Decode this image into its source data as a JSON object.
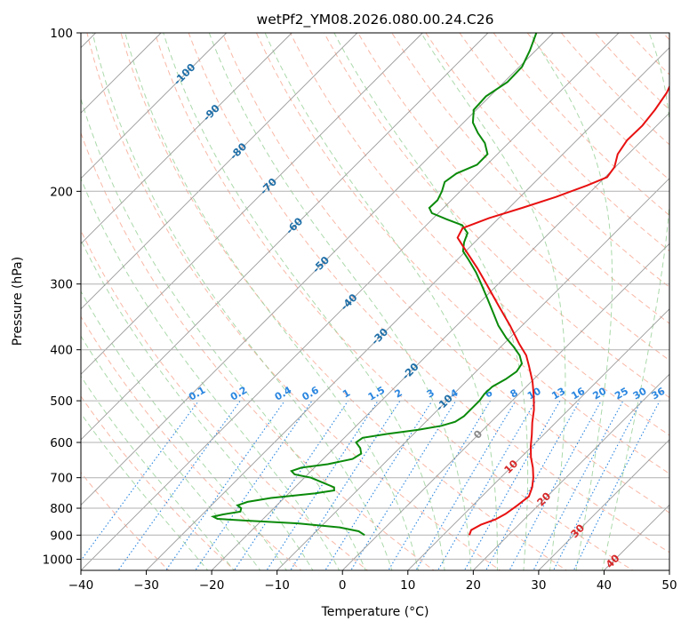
{
  "chart_data": {
    "type": "skew-t",
    "title": "wetPf2_YM08.2026.080.00.24.C26",
    "xlabel": "Temperature (°C)",
    "ylabel": "Pressure (hPa)",
    "xlim": [
      -40,
      50
    ],
    "ylim_hpa": [
      1050,
      100
    ],
    "x_ticks": [
      -40,
      -30,
      -20,
      -10,
      0,
      10,
      20,
      30,
      40,
      50
    ],
    "y_ticks": [
      1000,
      900,
      800,
      700,
      600,
      500,
      400,
      300,
      200,
      100
    ],
    "colors": {
      "temperature": "#e81010",
      "dewpoint": "#0a8a0a",
      "isotherm": "#9a9a9a",
      "dry_adiabat": "#f7a08a",
      "moist_adiabat": "#8fcc8f",
      "mixing_ratio": "#2a86e0",
      "isotherm_label": "#1f6fa8",
      "mixing_label": "#2a86e0",
      "mixing_zero_label": "#8a8a8a",
      "red_label": "#d62728"
    },
    "isotherm_labels": [
      {
        "temp": -100,
        "pressure": 120,
        "text": "-100"
      },
      {
        "temp": -90,
        "pressure": 142,
        "text": "-90"
      },
      {
        "temp": -80,
        "pressure": 168,
        "text": "-80"
      },
      {
        "temp": -70,
        "pressure": 196,
        "text": "-70"
      },
      {
        "temp": -60,
        "pressure": 233,
        "text": "-60"
      },
      {
        "temp": -50,
        "pressure": 276,
        "text": "-50"
      },
      {
        "temp": -40,
        "pressure": 325,
        "text": "-40"
      },
      {
        "temp": -30,
        "pressure": 378,
        "text": "-30"
      },
      {
        "temp": -20,
        "pressure": 440,
        "text": "-20"
      },
      {
        "temp": -10,
        "pressure": 505,
        "text": "-10"
      },
      {
        "temp": 0,
        "pressure": 580,
        "text": "0"
      },
      {
        "temp": 10,
        "pressure": 668,
        "text": "10"
      },
      {
        "temp": 20,
        "pressure": 770,
        "text": "20"
      },
      {
        "temp": 30,
        "pressure": 885,
        "text": "30"
      },
      {
        "temp": 40,
        "pressure": 1010,
        "text": "40"
      }
    ],
    "mixing_ratios": [
      0.1,
      0.2,
      0.4,
      0.6,
      1,
      1.5,
      2,
      3,
      4,
      6,
      8,
      10,
      13,
      16,
      20,
      25,
      30,
      36
    ],
    "mixing_ratio_labels": [
      "0.1",
      "0.2",
      "0.4",
      "0.6",
      "1",
      "1.5",
      "2",
      "3",
      "4",
      "6",
      "8",
      "10",
      "13",
      "16",
      "20",
      "25",
      "30",
      "36"
    ],
    "temperature_profile": [
      {
        "p": 900,
        "t": 14.0
      },
      {
        "p": 880,
        "t": 13.5
      },
      {
        "p": 860,
        "t": 14.2
      },
      {
        "p": 840,
        "t": 15.6
      },
      {
        "p": 820,
        "t": 16.3
      },
      {
        "p": 790,
        "t": 16.8
      },
      {
        "p": 760,
        "t": 17.2
      },
      {
        "p": 730,
        "t": 16.3
      },
      {
        "p": 700,
        "t": 15.0
      },
      {
        "p": 670,
        "t": 13.4
      },
      {
        "p": 640,
        "t": 11.5
      },
      {
        "p": 610,
        "t": 9.8
      },
      {
        "p": 580,
        "t": 8.2
      },
      {
        "p": 550,
        "t": 6.4
      },
      {
        "p": 520,
        "t": 4.7
      },
      {
        "p": 490,
        "t": 2.6
      },
      {
        "p": 460,
        "t": 0.2
      },
      {
        "p": 430,
        "t": -2.7
      },
      {
        "p": 410,
        "t": -4.8
      },
      {
        "p": 390,
        "t": -7.6
      },
      {
        "p": 360,
        "t": -11.8
      },
      {
        "p": 330,
        "t": -16.6
      },
      {
        "p": 300,
        "t": -21.8
      },
      {
        "p": 280,
        "t": -25.6
      },
      {
        "p": 260,
        "t": -29.9
      },
      {
        "p": 245,
        "t": -33.3
      },
      {
        "p": 235,
        "t": -34.0
      },
      {
        "p": 225,
        "t": -31.5
      },
      {
        "p": 215,
        "t": -28.0
      },
      {
        "p": 205,
        "t": -24.5
      },
      {
        "p": 195,
        "t": -21.5
      },
      {
        "p": 188,
        "t": -19.7
      },
      {
        "p": 180,
        "t": -20.1
      },
      {
        "p": 170,
        "t": -21.6
      },
      {
        "p": 160,
        "t": -22.3
      },
      {
        "p": 150,
        "t": -22.2
      },
      {
        "p": 140,
        "t": -22.7
      },
      {
        "p": 130,
        "t": -23.5
      },
      {
        "p": 120,
        "t": -25.0
      },
      {
        "p": 110,
        "t": -27.2
      },
      {
        "p": 100,
        "t": -29.4
      }
    ],
    "dewpoint_profile": [
      {
        "p": 900,
        "t": -2.0
      },
      {
        "p": 885,
        "t": -3.5
      },
      {
        "p": 870,
        "t": -7.0
      },
      {
        "p": 855,
        "t": -14.0
      },
      {
        "p": 845,
        "t": -22.0
      },
      {
        "p": 838,
        "t": -27.0
      },
      {
        "p": 830,
        "t": -28.0
      },
      {
        "p": 822,
        "t": -26.8
      },
      {
        "p": 812,
        "t": -24.6
      },
      {
        "p": 800,
        "t": -25.0
      },
      {
        "p": 790,
        "t": -26.0
      },
      {
        "p": 778,
        "t": -25.0
      },
      {
        "p": 765,
        "t": -22.0
      },
      {
        "p": 750,
        "t": -16.0
      },
      {
        "p": 740,
        "t": -13.5
      },
      {
        "p": 730,
        "t": -14.0
      },
      {
        "p": 715,
        "t": -16.5
      },
      {
        "p": 700,
        "t": -19.0
      },
      {
        "p": 690,
        "t": -22.0
      },
      {
        "p": 680,
        "t": -23.0
      },
      {
        "p": 670,
        "t": -22.0
      },
      {
        "p": 660,
        "t": -18.5
      },
      {
        "p": 645,
        "t": -15.5
      },
      {
        "p": 630,
        "t": -15.0
      },
      {
        "p": 615,
        "t": -16.0
      },
      {
        "p": 600,
        "t": -17.5
      },
      {
        "p": 588,
        "t": -17.2
      },
      {
        "p": 578,
        "t": -14.0
      },
      {
        "p": 568,
        "t": -10.0
      },
      {
        "p": 558,
        "t": -7.0
      },
      {
        "p": 548,
        "t": -5.5
      },
      {
        "p": 535,
        "t": -5.0
      },
      {
        "p": 515,
        "t": -5.0
      },
      {
        "p": 500,
        "t": -5.0
      },
      {
        "p": 485,
        "t": -5.3
      },
      {
        "p": 470,
        "t": -5.2
      },
      {
        "p": 455,
        "t": -4.3
      },
      {
        "p": 440,
        "t": -3.8
      },
      {
        "p": 425,
        "t": -4.2
      },
      {
        "p": 410,
        "t": -5.8
      },
      {
        "p": 395,
        "t": -8.0
      },
      {
        "p": 380,
        "t": -10.5
      },
      {
        "p": 360,
        "t": -13.6
      },
      {
        "p": 340,
        "t": -16.4
      },
      {
        "p": 320,
        "t": -19.4
      },
      {
        "p": 300,
        "t": -22.6
      },
      {
        "p": 285,
        "t": -25.2
      },
      {
        "p": 270,
        "t": -28.2
      },
      {
        "p": 260,
        "t": -30.4
      },
      {
        "p": 250,
        "t": -31.6
      },
      {
        "p": 240,
        "t": -32.5
      },
      {
        "p": 232,
        "t": -34.5
      },
      {
        "p": 226,
        "t": -37.8
      },
      {
        "p": 220,
        "t": -41.0
      },
      {
        "p": 215,
        "t": -42.2
      },
      {
        "p": 208,
        "t": -42.1
      },
      {
        "p": 200,
        "t": -42.8
      },
      {
        "p": 192,
        "t": -43.8
      },
      {
        "p": 185,
        "t": -43.3
      },
      {
        "p": 178,
        "t": -41.5
      },
      {
        "p": 170,
        "t": -41.5
      },
      {
        "p": 162,
        "t": -43.6
      },
      {
        "p": 155,
        "t": -46.2
      },
      {
        "p": 148,
        "t": -48.6
      },
      {
        "p": 140,
        "t": -50.4
      },
      {
        "p": 132,
        "t": -50.6
      },
      {
        "p": 124,
        "t": -49.5
      },
      {
        "p": 116,
        "t": -49.6
      },
      {
        "p": 108,
        "t": -50.9
      },
      {
        "p": 100,
        "t": -52.6
      }
    ]
  }
}
